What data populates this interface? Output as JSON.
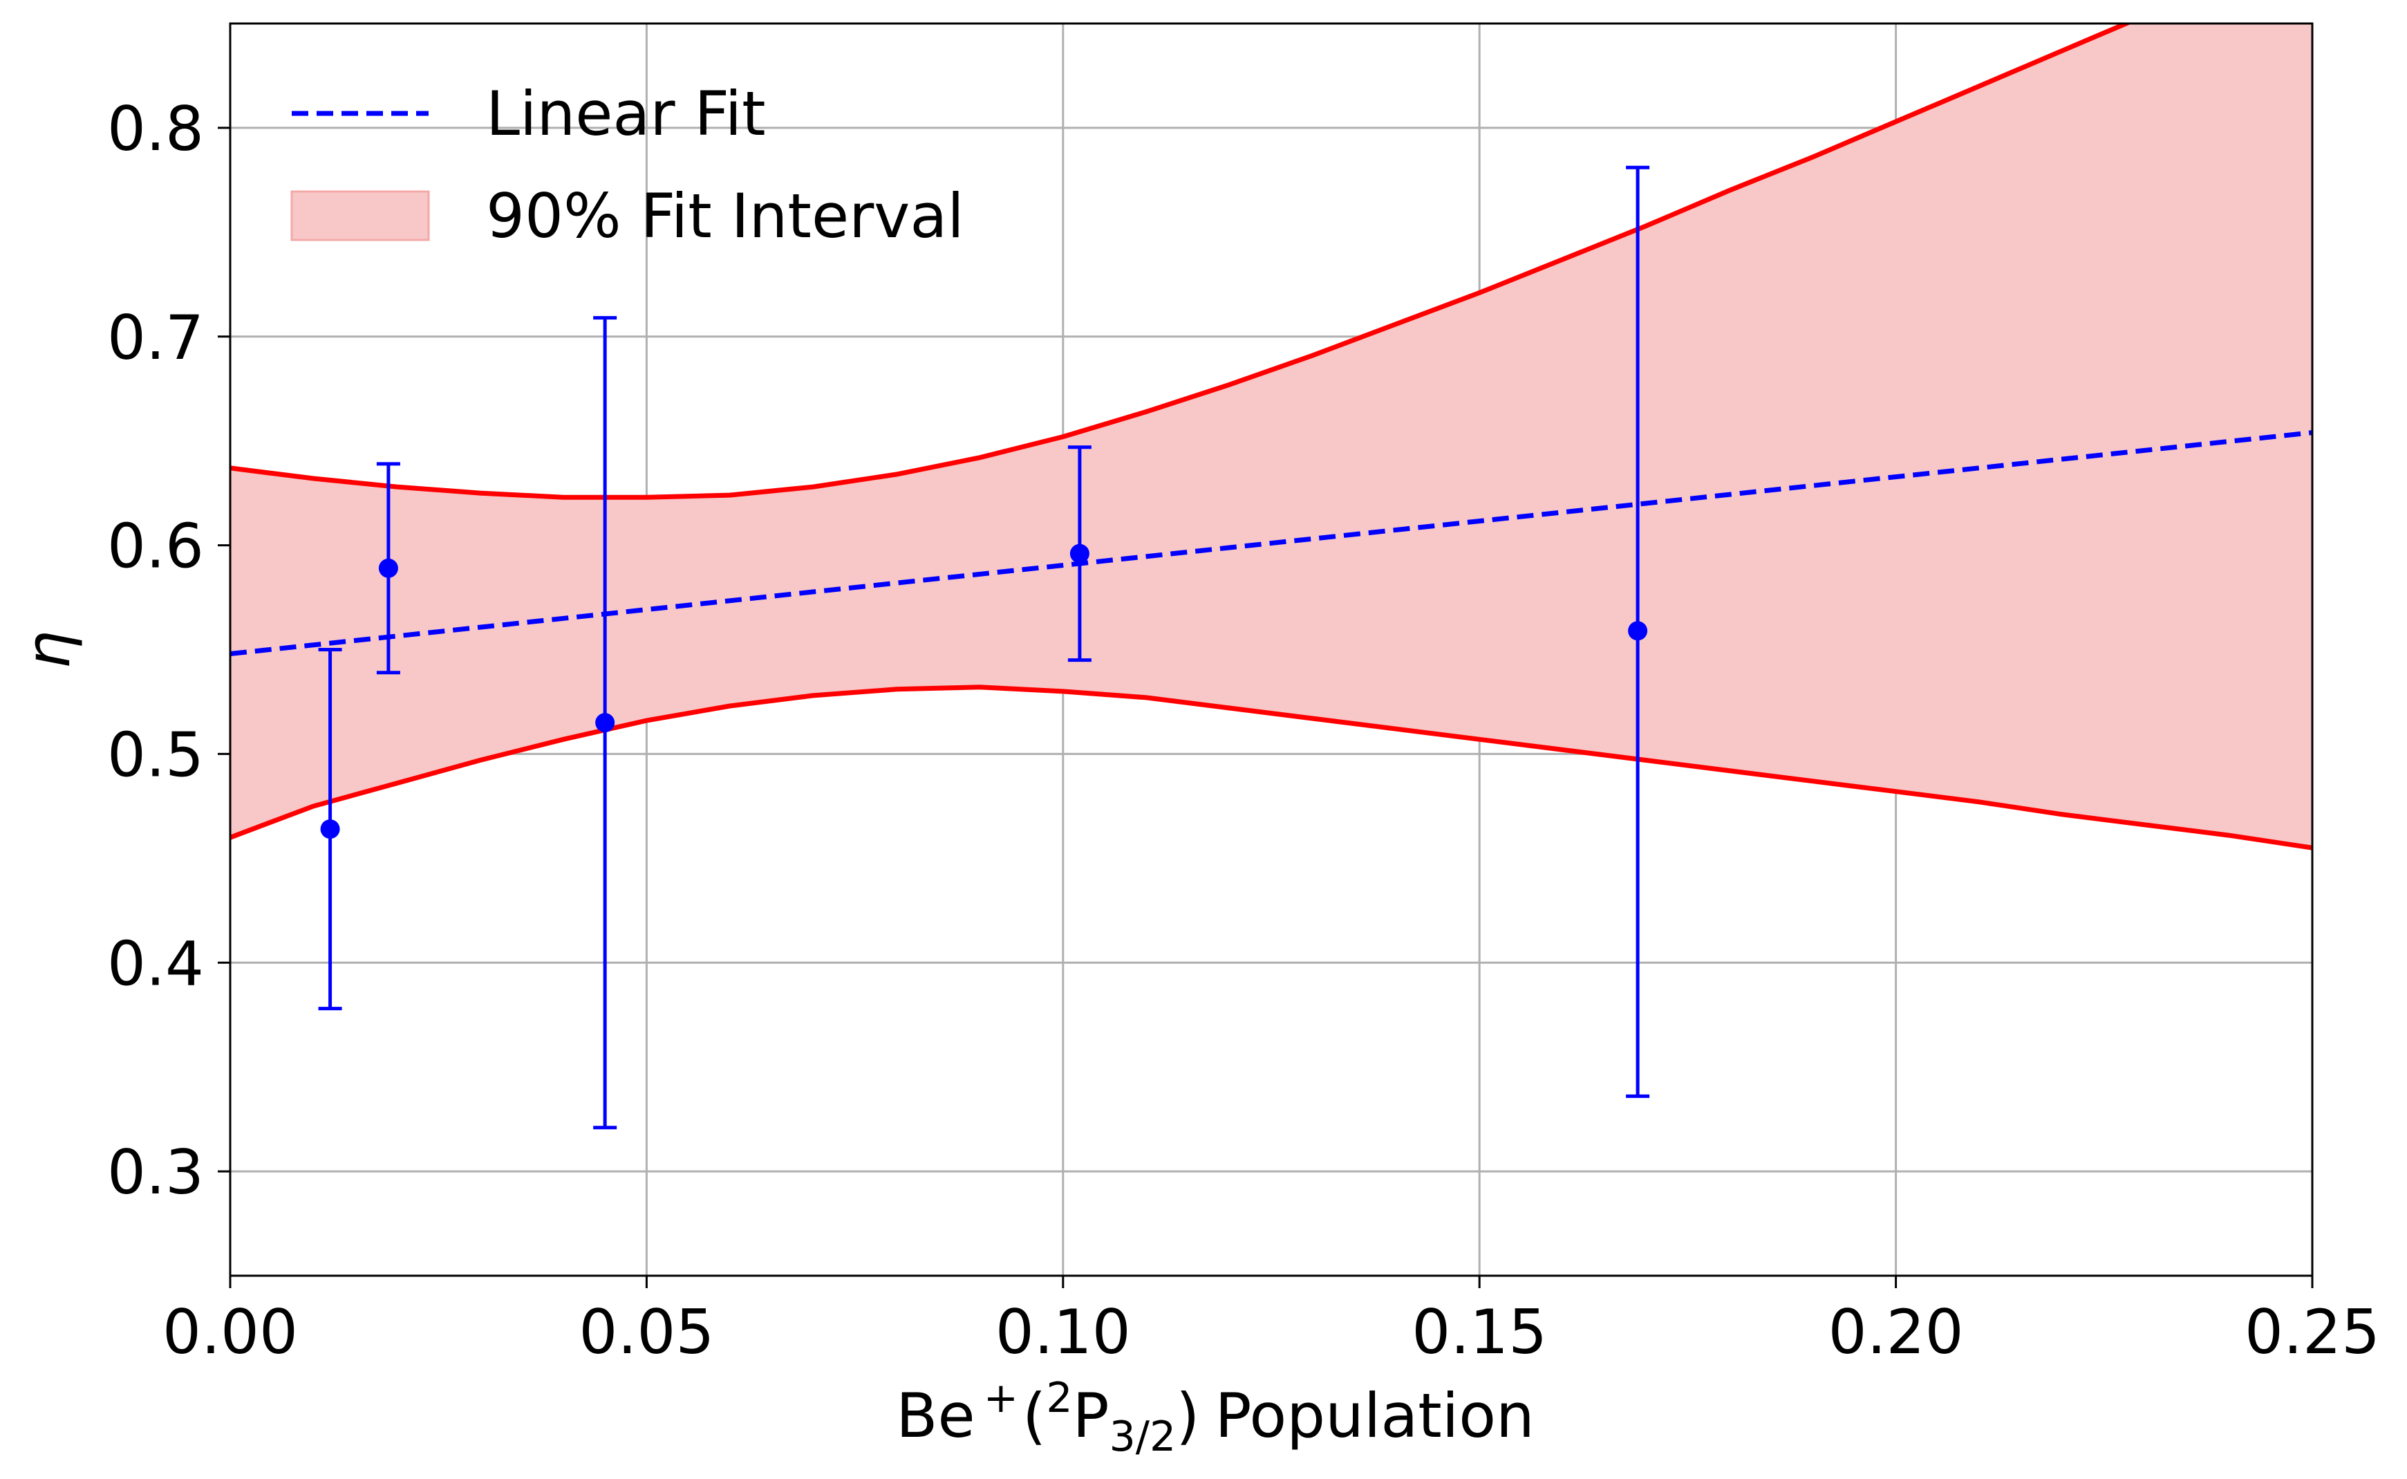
{
  "chart_data": {
    "type": "scatter",
    "xlabel": {
      "base": "Be",
      "charge": "+",
      "paren_open": "(",
      "mult": "2",
      "term": "P",
      "sub": "3/2",
      "paren_close": ")",
      "word": "Population"
    },
    "ylabel": "η",
    "xlim": [
      0.0,
      0.25
    ],
    "ylim": [
      0.25,
      0.85
    ],
    "xticks": [
      0.0,
      0.05,
      0.1,
      0.15,
      0.2,
      0.25
    ],
    "xtick_labels": [
      "0.00",
      "0.05",
      "0.10",
      "0.15",
      "0.20",
      "0.25"
    ],
    "yticks": [
      0.3,
      0.4,
      0.5,
      0.6,
      0.7,
      0.8
    ],
    "ytick_labels": [
      "0.3",
      "0.4",
      "0.5",
      "0.6",
      "0.7",
      "0.8"
    ],
    "grid": true,
    "legend_position": "top-left",
    "legend": {
      "linear_fit": "Linear Fit",
      "interval": "90% Fit Interval"
    },
    "colors": {
      "points": "#0000ff",
      "fit_line": "#0000ff",
      "band_fill": "#f8c8c8",
      "band_edge": "#ff0000",
      "grid": "#b0b0b0"
    },
    "points": [
      {
        "x": 0.012,
        "y": 0.464,
        "ylow": 0.378,
        "yhigh": 0.55
      },
      {
        "x": 0.019,
        "y": 0.589,
        "ylow": 0.539,
        "yhigh": 0.639
      },
      {
        "x": 0.045,
        "y": 0.515,
        "ylow": 0.321,
        "yhigh": 0.709
      },
      {
        "x": 0.102,
        "y": 0.596,
        "ylow": 0.545,
        "yhigh": 0.647
      },
      {
        "x": 0.169,
        "y": 0.559,
        "ylow": 0.336,
        "yhigh": 0.781
      }
    ],
    "linear_fit": {
      "x": [
        0.0,
        0.25
      ],
      "y": [
        0.548,
        0.654
      ]
    },
    "interval": {
      "x": [
        0.0,
        0.01,
        0.02,
        0.03,
        0.04,
        0.05,
        0.06,
        0.07,
        0.08,
        0.09,
        0.1,
        0.11,
        0.12,
        0.13,
        0.14,
        0.15,
        0.16,
        0.17,
        0.18,
        0.19,
        0.2,
        0.21,
        0.22,
        0.23,
        0.24,
        0.25
      ],
      "upper": [
        0.637,
        0.632,
        0.628,
        0.625,
        0.623,
        0.623,
        0.624,
        0.628,
        0.634,
        0.642,
        0.652,
        0.664,
        0.677,
        0.691,
        0.706,
        0.721,
        0.737,
        0.753,
        0.77,
        0.786,
        0.803,
        0.82,
        0.837,
        0.854,
        0.871,
        0.888
      ],
      "lower": [
        0.46,
        0.475,
        0.486,
        0.497,
        0.507,
        0.516,
        0.523,
        0.528,
        0.531,
        0.532,
        0.53,
        0.527,
        0.522,
        0.517,
        0.512,
        0.507,
        0.502,
        0.497,
        0.492,
        0.487,
        0.482,
        0.477,
        0.471,
        0.466,
        0.461,
        0.455
      ]
    }
  }
}
